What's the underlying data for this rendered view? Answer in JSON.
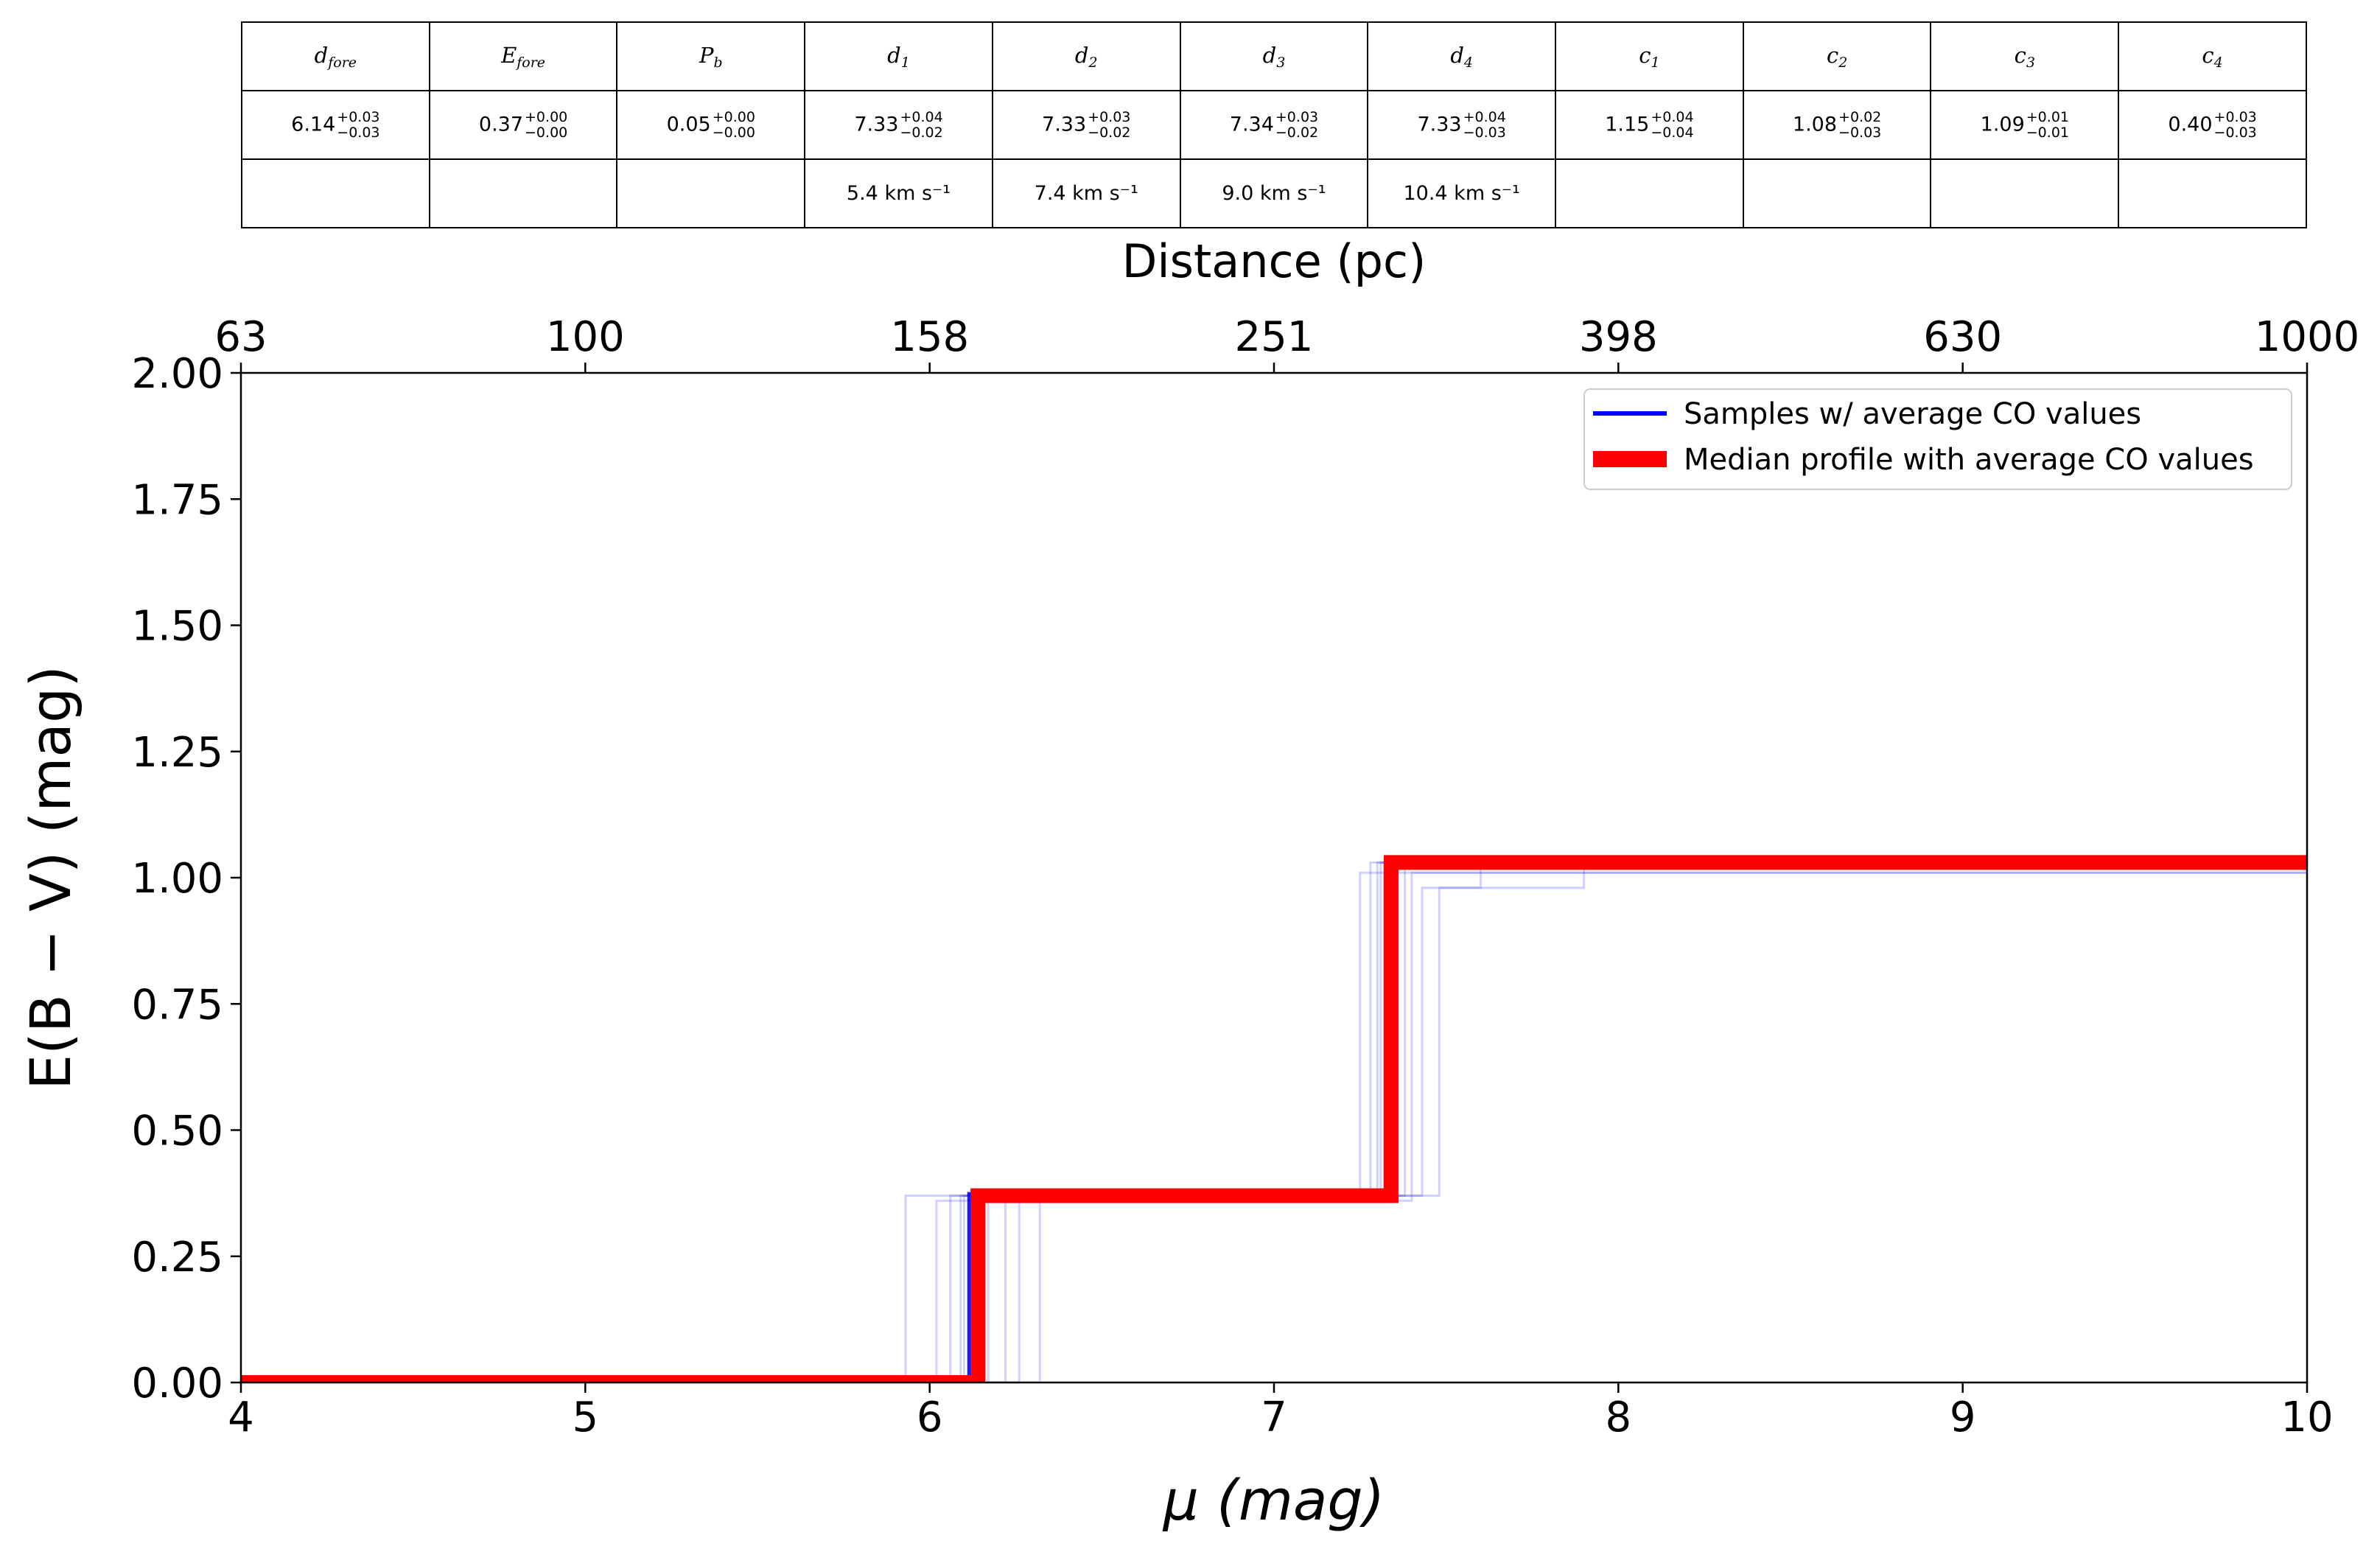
{
  "table": {
    "headers": [
      {
        "sym": "d",
        "sub": "fore"
      },
      {
        "sym": "E",
        "sub": "fore"
      },
      {
        "sym": "P",
        "sub": "b"
      },
      {
        "sym": "d",
        "sub": "1"
      },
      {
        "sym": "d",
        "sub": "2"
      },
      {
        "sym": "d",
        "sub": "3"
      },
      {
        "sym": "d",
        "sub": "4"
      },
      {
        "sym": "c",
        "sub": "1"
      },
      {
        "sym": "c",
        "sub": "2"
      },
      {
        "sym": "c",
        "sub": "3"
      },
      {
        "sym": "c",
        "sub": "4"
      }
    ],
    "values": [
      {
        "v": "6.14",
        "up": "+0.03",
        "lo": "−0.03"
      },
      {
        "v": "0.37",
        "up": "+0.00",
        "lo": "−0.00"
      },
      {
        "v": "0.05",
        "up": "+0.00",
        "lo": "−0.00"
      },
      {
        "v": "7.33",
        "up": "+0.04",
        "lo": "−0.02"
      },
      {
        "v": "7.33",
        "up": "+0.03",
        "lo": "−0.02"
      },
      {
        "v": "7.34",
        "up": "+0.03",
        "lo": "−0.02"
      },
      {
        "v": "7.33",
        "up": "+0.04",
        "lo": "−0.03"
      },
      {
        "v": "1.15",
        "up": "+0.04",
        "lo": "−0.04"
      },
      {
        "v": "1.08",
        "up": "+0.02",
        "lo": "−0.03"
      },
      {
        "v": "1.09",
        "up": "+0.01",
        "lo": "−0.01"
      },
      {
        "v": "0.40",
        "up": "+0.03",
        "lo": "−0.03"
      }
    ],
    "velocities": [
      "",
      "",
      "",
      "5.4 km s⁻¹",
      "7.4 km s⁻¹",
      "9.0 km s⁻¹",
      "10.4 km s⁻¹",
      "",
      "",
      "",
      ""
    ]
  },
  "chart_data": {
    "type": "line",
    "xlabel": "μ (mag)",
    "ylabel": "E(B − V) (mag)",
    "top_xlabel": "Distance (pc)",
    "xlim": [
      4,
      10
    ],
    "ylim": [
      0,
      2
    ],
    "x_ticks": [
      "4",
      "5",
      "6",
      "7",
      "8",
      "9",
      "10"
    ],
    "y_ticks": [
      "0.00",
      "0.25",
      "0.50",
      "0.75",
      "1.00",
      "1.25",
      "1.50",
      "1.75",
      "2.00"
    ],
    "top_ticks": [
      {
        "mu": 4,
        "label": "63"
      },
      {
        "mu": 5,
        "label": "100"
      },
      {
        "mu": 6,
        "label": "158"
      },
      {
        "mu": 7,
        "label": "251"
      },
      {
        "mu": 8,
        "label": "398"
      },
      {
        "mu": 9,
        "label": "630"
      },
      {
        "mu": 10,
        "label": "1000"
      }
    ],
    "legend_position": "top-right",
    "series": [
      {
        "name": "Samples  w/ average CO values",
        "color": "#0000ff",
        "style": "many faint step profiles",
        "sample_profiles": [
          [
            [
              4,
              0
            ],
            [
              6.12,
              0
            ],
            [
              6.12,
              0.37
            ],
            [
              7.33,
              0.37
            ],
            [
              7.33,
              1.03
            ],
            [
              10,
              1.03
            ]
          ],
          [
            [
              4,
              0
            ],
            [
              6.1,
              0
            ],
            [
              6.1,
              0.37
            ],
            [
              7.3,
              0.37
            ],
            [
              7.3,
              1.03
            ],
            [
              10,
              1.03
            ]
          ],
          [
            [
              4,
              0
            ],
            [
              6.15,
              0
            ],
            [
              6.15,
              0.37
            ],
            [
              7.35,
              0.37
            ],
            [
              7.35,
              1.02
            ],
            [
              10,
              1.02
            ]
          ],
          [
            [
              4,
              0
            ],
            [
              6.09,
              0
            ],
            [
              6.09,
              0.37
            ],
            [
              7.31,
              0.37
            ],
            [
              7.31,
              1.03
            ],
            [
              10,
              1.03
            ]
          ],
          [
            [
              4,
              0
            ],
            [
              6.17,
              0
            ],
            [
              6.17,
              0.36
            ],
            [
              7.36,
              0.36
            ],
            [
              7.36,
              1.03
            ],
            [
              10,
              1.03
            ]
          ],
          [
            [
              4,
              0
            ],
            [
              5.93,
              0
            ],
            [
              5.93,
              0.37
            ],
            [
              7.25,
              0.37
            ],
            [
              7.25,
              1.01
            ],
            [
              10,
              1.01
            ]
          ],
          [
            [
              4,
              0
            ],
            [
              6.32,
              0
            ],
            [
              6.32,
              0.37
            ],
            [
              7.48,
              0.37
            ],
            [
              7.48,
              0.98
            ],
            [
              7.9,
              0.98
            ],
            [
              7.9,
              1.03
            ],
            [
              10,
              1.03
            ]
          ],
          [
            [
              4,
              0
            ],
            [
              6.02,
              0
            ],
            [
              6.02,
              0.36
            ],
            [
              7.4,
              0.36
            ],
            [
              7.4,
              1.01
            ],
            [
              10,
              1.01
            ]
          ],
          [
            [
              4,
              0
            ],
            [
              6.22,
              0
            ],
            [
              6.22,
              0.37
            ],
            [
              7.28,
              0.37
            ],
            [
              7.28,
              1.03
            ],
            [
              10,
              1.03
            ]
          ],
          [
            [
              4,
              0
            ],
            [
              6.26,
              0
            ],
            [
              6.26,
              0.37
            ],
            [
              7.43,
              0.37
            ],
            [
              7.43,
              0.98
            ],
            [
              7.6,
              0.98
            ],
            [
              7.6,
              1.02
            ],
            [
              10,
              1.02
            ]
          ],
          [
            [
              4,
              0
            ],
            [
              6.06,
              0
            ],
            [
              6.06,
              0.37
            ],
            [
              7.38,
              0.37
            ],
            [
              7.38,
              1.03
            ],
            [
              10,
              1.03
            ]
          ],
          [
            [
              4,
              0
            ],
            [
              6.13,
              0
            ],
            [
              6.13,
              0.37
            ],
            [
              7.32,
              0.37
            ],
            [
              7.32,
              1.03
            ],
            [
              10,
              1.03
            ]
          ]
        ]
      },
      {
        "name": "Median profile with average CO values",
        "color": "#ff0000",
        "style": "thick step line",
        "points": [
          [
            4,
            0
          ],
          [
            6.14,
            0
          ],
          [
            6.14,
            0.37
          ],
          [
            7.34,
            0.37
          ],
          [
            7.34,
            1.03
          ],
          [
            10,
            1.03
          ]
        ]
      }
    ]
  }
}
